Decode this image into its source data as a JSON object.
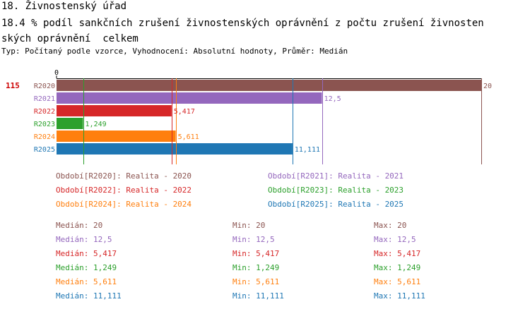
{
  "header": {
    "title": "18. Živnostenský úřad",
    "subtitle_line1": "18.4 % podíl sankčních zrušení živnostenských oprávnění z počtu zrušení živnosten",
    "subtitle_line2": "ských oprávnění  celkem",
    "meta": "Typ: Počítaný podle vzorce, Vyhodnocení: Absolutní hodnoty, Průměr: Medián"
  },
  "chart_data": {
    "type": "bar",
    "orientation": "horizontal",
    "row_marker": "115",
    "axis_zero_label": "0",
    "xlim": [
      0,
      20
    ],
    "categories": [
      "R2020",
      "R2021",
      "R2022",
      "R2023",
      "R2024",
      "R2025"
    ],
    "values": [
      20,
      12.5,
      5.417,
      1.249,
      5.611,
      11.111
    ],
    "value_labels": [
      "20",
      "12,5",
      "5,417",
      "1,249",
      "5,611",
      "11,111"
    ],
    "colors": [
      "#8b5450",
      "#9467bd",
      "#d62728",
      "#2ca02c",
      "#ff7f0e",
      "#1f77b4"
    ],
    "legend": [
      {
        "text": "Období[R2020]: Realita - 2020",
        "color": "#8b5450"
      },
      {
        "text": "Období[R2021]: Realita - 2021",
        "color": "#9467bd"
      },
      {
        "text": "Období[R2022]: Realita - 2022",
        "color": "#d62728"
      },
      {
        "text": "Období[R2023]: Realita - 2023",
        "color": "#2ca02c"
      },
      {
        "text": "Období[R2024]: Realita - 2024",
        "color": "#ff7f0e"
      },
      {
        "text": "Období[R2025]: Realita - 2025",
        "color": "#1f77b4"
      }
    ],
    "stats": [
      {
        "median": "Medián: 20",
        "min": "Min: 20",
        "max": "Max: 20",
        "color": "#8b5450"
      },
      {
        "median": "Medián: 12,5",
        "min": "Min: 12,5",
        "max": "Max: 12,5",
        "color": "#9467bd"
      },
      {
        "median": "Medián: 5,417",
        "min": "Min: 5,417",
        "max": "Max: 5,417",
        "color": "#d62728"
      },
      {
        "median": "Medián: 1,249",
        "min": "Min: 1,249",
        "max": "Max: 1,249",
        "color": "#2ca02c"
      },
      {
        "median": "Medián: 5,611",
        "min": "Min: 5,611",
        "max": "Max: 5,611",
        "color": "#ff7f0e"
      },
      {
        "median": "Medián: 11,111",
        "min": "Min: 11,111",
        "max": "Max: 11,111",
        "color": "#1f77b4"
      }
    ]
  }
}
